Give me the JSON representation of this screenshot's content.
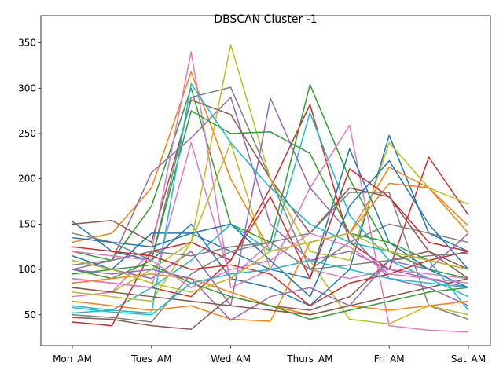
{
  "chart_data": {
    "type": "line",
    "title": "DBSCAN Cluster -1",
    "categories": [
      "Mon_AM",
      null,
      "Tues_AM",
      null,
      "Wed_AM",
      null,
      "Thurs_AM",
      null,
      "Fri_AM",
      null,
      "Sat_AM"
    ],
    "ylim": [
      16,
      380
    ],
    "yticks": [
      50,
      100,
      150,
      200,
      250,
      300,
      350
    ],
    "series": [
      {
        "color": "#1f77b4",
        "values": [
          153,
          120,
          110,
          150,
          90,
          80,
          60,
          100,
          248,
          140,
          120
        ]
      },
      {
        "color": "#ff7f0e",
        "values": [
          130,
          140,
          190,
          318,
          200,
          120,
          130,
          140,
          213,
          190,
          140
        ]
      },
      {
        "color": "#2ca02c",
        "values": [
          120,
          110,
          170,
          300,
          150,
          130,
          304,
          200,
          120,
          100,
          90
        ]
      },
      {
        "color": "#d62728",
        "values": [
          90,
          85,
          80,
          70,
          110,
          190,
          282,
          130,
          100,
          224,
          160
        ]
      },
      {
        "color": "#9467bd",
        "values": [
          100,
          110,
          207,
          245,
          290,
          150,
          110,
          120,
          100,
          90,
          80
        ]
      },
      {
        "color": "#8c564b",
        "values": [
          150,
          154,
          130,
          287,
          271,
          200,
          140,
          190,
          180,
          120,
          100
        ]
      },
      {
        "color": "#e377c2",
        "values": [
          70,
          75,
          120,
          340,
          80,
          100,
          190,
          259,
          38,
          33,
          31
        ]
      },
      {
        "color": "#7f7f7f",
        "values": [
          140,
          130,
          110,
          290,
          301,
          200,
          100,
          130,
          150,
          140,
          130
        ]
      },
      {
        "color": "#bcbd22",
        "values": [
          80,
          75,
          100,
          130,
          348,
          200,
          120,
          110,
          240,
          190,
          172
        ]
      },
      {
        "color": "#17becf",
        "values": [
          60,
          55,
          80,
          110,
          150,
          120,
          273,
          160,
          110,
          90,
          70
        ]
      },
      {
        "color": "#1f77b4",
        "values": [
          115,
          100,
          140,
          140,
          120,
          100,
          90,
          233,
          130,
          100,
          80
        ]
      },
      {
        "color": "#ff7f0e",
        "values": [
          65,
          60,
          55,
          60,
          45,
          43,
          130,
          140,
          195,
          190,
          148
        ]
      },
      {
        "color": "#2ca02c",
        "values": [
          100,
          90,
          110,
          275,
          250,
          252,
          228,
          140,
          130,
          110,
          100
        ]
      },
      {
        "color": "#d62728",
        "values": [
          42,
          38,
          120,
          130,
          110,
          180,
          90,
          211,
          180,
          130,
          120
        ]
      },
      {
        "color": "#9467bd",
        "values": [
          110,
          100,
          90,
          120,
          60,
          289,
          190,
          140,
          90,
          80,
          60
        ]
      },
      {
        "color": "#8c564b",
        "values": [
          47,
          45,
          38,
          34,
          70,
          60,
          55,
          70,
          110,
          120,
          90
        ]
      },
      {
        "color": "#e377c2",
        "values": [
          90,
          85,
          80,
          240,
          90,
          130,
          100,
          90,
          100,
          95,
          90
        ]
      },
      {
        "color": "#7f7f7f",
        "values": [
          50,
          47,
          42,
          95,
          120,
          130,
          140,
          185,
          185,
          60,
          45
        ]
      },
      {
        "color": "#bcbd22",
        "values": [
          75,
          70,
          65,
          130,
          240,
          100,
          110,
          45,
          40,
          60,
          50
        ]
      },
      {
        "color": "#17becf",
        "values": [
          52,
          55,
          52,
          305,
          240,
          190,
          150,
          130,
          120,
          110,
          55
        ]
      },
      {
        "color": "#1f77b4",
        "values": [
          135,
          130,
          125,
          140,
          150,
          110,
          70,
          170,
          220,
          150,
          100
        ]
      },
      {
        "color": "#ff7f0e",
        "values": [
          85,
          90,
          95,
          90,
          75,
          60,
          50,
          60,
          55,
          60,
          65
        ]
      },
      {
        "color": "#2ca02c",
        "values": [
          95,
          100,
          105,
          85,
          70,
          60,
          45,
          55,
          65,
          75,
          80
        ]
      },
      {
        "color": "#d62728",
        "values": [
          125,
          120,
          115,
          100,
          105,
          95,
          60,
          85,
          95,
          110,
          120
        ]
      },
      {
        "color": "#9467bd",
        "values": [
          100,
          95,
          100,
          90,
          44,
          70,
          80,
          60,
          110,
          100,
          140
        ]
      },
      {
        "color": "#8c564b",
        "values": [
          80,
          75,
          70,
          65,
          60,
          55,
          50,
          60,
          70,
          80,
          90
        ]
      },
      {
        "color": "#e377c2",
        "values": [
          120,
          115,
          110,
          80,
          100,
          110,
          140,
          125,
          95,
          90,
          85
        ]
      },
      {
        "color": "#7f7f7f",
        "values": [
          105,
          110,
          120,
          115,
          125,
          130,
          100,
          105,
          110,
          115,
          118
        ]
      },
      {
        "color": "#bcbd22",
        "values": [
          110,
          100,
          85,
          75,
          90,
          120,
          130,
          140,
          120,
          110,
          100
        ]
      },
      {
        "color": "#17becf",
        "values": [
          58,
          53,
          50,
          85,
          95,
          100,
          110,
          100,
          90,
          85,
          80
        ]
      }
    ]
  }
}
